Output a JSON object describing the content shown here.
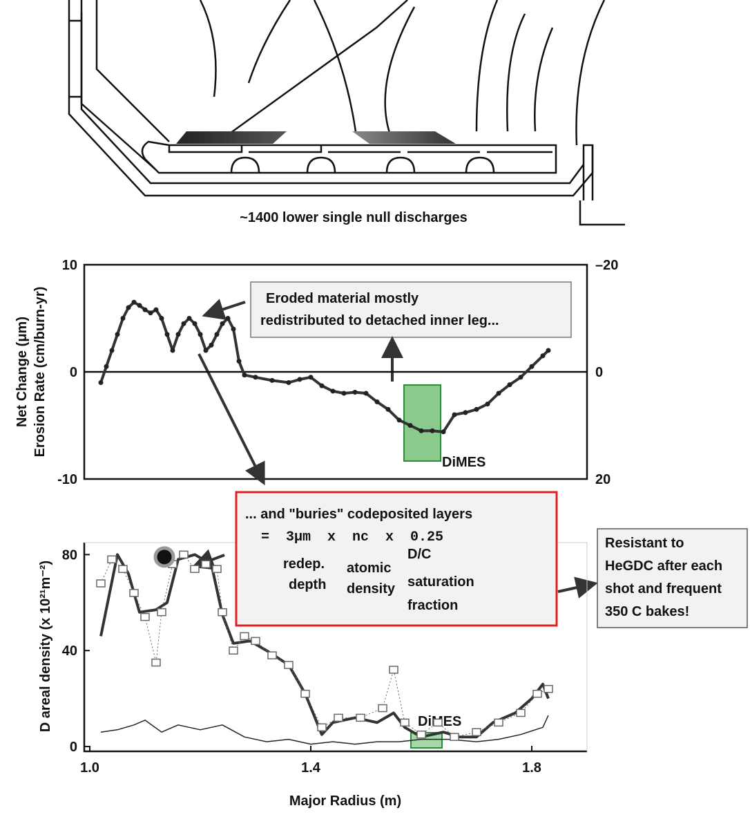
{
  "diagram": {
    "caption": "~1400 lower single null discharges"
  },
  "chart_data": [
    {
      "type": "line",
      "ylabel": "Net Change (μm)",
      "y2label": "Erosion Rate (cm/burn-yr)",
      "xlim": [
        0.99,
        1.9
      ],
      "ylim": [
        -10,
        10
      ],
      "yticks": [
        -10,
        0,
        10
      ],
      "y2lim": [
        20,
        -20
      ],
      "y2ticks": [
        {
          "value": -20,
          "label": "–20"
        },
        0,
        20
      ],
      "zero_line": true,
      "series": [
        {
          "color": "#333333",
          "width": 4,
          "marker": "dot",
          "x": [
            1.02,
            1.03,
            1.04,
            1.05,
            1.06,
            1.07,
            1.08,
            1.09,
            1.1,
            1.11,
            1.12,
            1.13,
            1.14,
            1.15,
            1.16,
            1.17,
            1.18,
            1.19,
            1.2,
            1.21,
            1.22,
            1.23,
            1.24,
            1.25,
            1.26,
            1.27,
            1.28,
            1.3,
            1.33,
            1.36,
            1.38,
            1.4,
            1.42,
            1.44,
            1.46,
            1.48,
            1.5,
            1.52,
            1.54,
            1.56,
            1.58,
            1.6,
            1.62,
            1.64,
            1.66,
            1.68,
            1.7,
            1.72,
            1.74,
            1.76,
            1.78,
            1.8,
            1.82,
            1.83
          ],
          "values": [
            -1,
            0.5,
            2,
            3.5,
            5,
            6,
            6.5,
            6.2,
            5.8,
            5.5,
            5.8,
            5,
            3.5,
            2,
            3.5,
            4.5,
            5,
            4.5,
            3.5,
            2,
            2.5,
            3.5,
            4.5,
            5,
            4,
            1,
            -0.3,
            -0.5,
            -0.8,
            -1,
            -0.7,
            -0.5,
            -1.3,
            -1.8,
            -2,
            -1.9,
            -2,
            -2.8,
            -3.5,
            -4.5,
            -5,
            -5.5,
            -5.5,
            -5.6,
            -4,
            -3.8,
            -3.5,
            -3,
            -2,
            -1.2,
            -0.5,
            0.5,
            1.5,
            2
          ]
        }
      ],
      "annotation": [
        "Eroded material mostly",
        "redistributed to detached inner leg..."
      ],
      "box_label": "DiMES"
    },
    {
      "type": "line",
      "xlabel": "Major Radius (m)",
      "ylabel": "D areal density (x 10²¹m⁻²)",
      "xlim": [
        0.99,
        1.9
      ],
      "xticks": [
        {
          "value": 1.0,
          "label": "1.0"
        },
        1.4,
        1.8
      ],
      "ylim": [
        -2,
        85
      ],
      "yticks": [
        0,
        40,
        80
      ],
      "series": [
        {
          "color": "#333333",
          "width": 4,
          "marker": "none",
          "x": [
            1.02,
            1.05,
            1.07,
            1.09,
            1.12,
            1.14,
            1.16,
            1.19,
            1.22,
            1.24,
            1.26,
            1.29,
            1.32,
            1.36,
            1.39,
            1.42,
            1.44,
            1.48,
            1.52,
            1.55,
            1.57,
            1.6,
            1.64,
            1.67,
            1.7,
            1.73,
            1.77,
            1.8,
            1.82,
            1.83
          ],
          "values": [
            46,
            80,
            72,
            56,
            57,
            60,
            78,
            80,
            76,
            55,
            43,
            44,
            40,
            34,
            22,
            5,
            10,
            12,
            10,
            14,
            8,
            4,
            6,
            4,
            4,
            10,
            14,
            20,
            26,
            20
          ]
        },
        {
          "color": "#222222",
          "width": 1.5,
          "marker": "none",
          "x": [
            1.02,
            1.05,
            1.08,
            1.1,
            1.13,
            1.16,
            1.2,
            1.24,
            1.28,
            1.32,
            1.36,
            1.4,
            1.44,
            1.48,
            1.52,
            1.56,
            1.6,
            1.65,
            1.7,
            1.74,
            1.78,
            1.82,
            1.83
          ],
          "values": [
            6,
            7,
            9,
            11,
            6,
            9,
            7,
            9,
            4,
            2,
            3,
            1,
            2,
            1,
            2,
            2,
            3,
            3,
            2,
            3,
            5,
            8,
            13
          ]
        },
        {
          "color": "#666666",
          "width": 1,
          "marker": "square",
          "x": [
            1.02,
            1.04,
            1.06,
            1.08,
            1.1,
            1.12,
            1.13,
            1.15,
            1.17,
            1.19,
            1.21,
            1.23,
            1.24,
            1.26,
            1.28,
            1.3,
            1.33,
            1.36,
            1.39,
            1.42,
            1.45,
            1.49,
            1.53,
            1.55,
            1.57,
            1.6,
            1.63,
            1.66,
            1.7,
            1.74,
            1.78,
            1.81,
            1.83
          ],
          "values": [
            68,
            78,
            74,
            64,
            54,
            35,
            56,
            76,
            80,
            74,
            76,
            74,
            56,
            40,
            46,
            44,
            38,
            34,
            22,
            8,
            12,
            12,
            16,
            32,
            10,
            5,
            10,
            4,
            6,
            10,
            14,
            22,
            24
          ]
        },
        {
          "color": "#111111",
          "width": 0,
          "marker": "bigdot",
          "x": [
            1.135
          ],
          "values": [
            79
          ]
        }
      ],
      "box_label": "DiMES"
    }
  ],
  "callout": {
    "lines": [
      "... and \"buries\" codeposited layers",
      "=  3μm  x  nc  x  0.25"
    ],
    "terms": [
      [
        "redep.",
        "depth"
      ],
      [
        "atomic",
        "density"
      ],
      [
        "D/C",
        "saturation",
        "fraction"
      ]
    ]
  },
  "note": {
    "lines": [
      "Resistant to",
      "HeGDC after each",
      "shot and frequent",
      "350 C bakes!"
    ]
  }
}
